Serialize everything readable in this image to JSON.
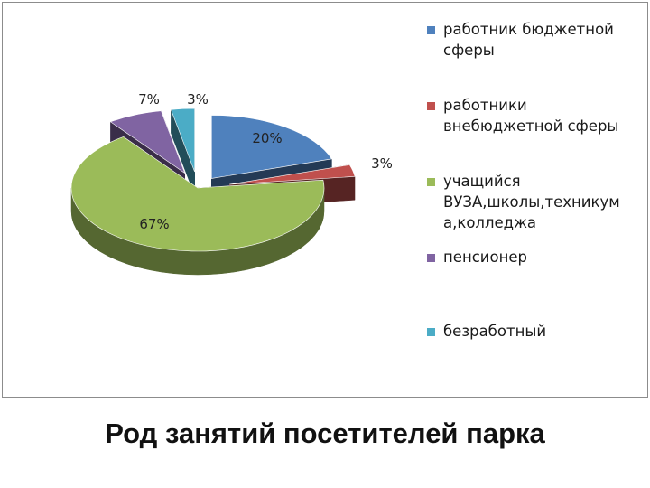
{
  "caption": "Род занятий посетителей парка",
  "chart_data": {
    "type": "pie",
    "style": "3d-exploded",
    "categories": [
      "работник бюджетной сферы",
      "работники внебюджетной сферы",
      "учащийся ВУЗА,школы,техникум а,колледжа",
      "пенсионер",
      "безработный"
    ],
    "values": [
      20,
      3,
      67,
      7,
      3
    ],
    "data_labels": [
      "20%",
      "3%",
      "67%",
      "7%",
      "3%"
    ],
    "colors": [
      "#4f81bd",
      "#c0504d",
      "#9bbb59",
      "#8064a2",
      "#4bacc6"
    ],
    "legend": {
      "position": "right",
      "lines": [
        [
          "работник бюджетной",
          "сферы"
        ],
        [
          "работники",
          "внебюджетной сферы"
        ],
        [
          "учащийся",
          "ВУЗА,школы,техникум",
          "а,колледжа"
        ],
        [
          "пенсионер"
        ],
        [
          "безработный"
        ]
      ]
    }
  }
}
